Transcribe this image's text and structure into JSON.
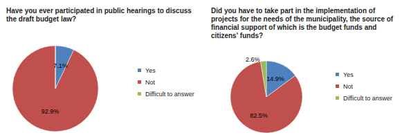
{
  "chart_data": [
    {
      "type": "pie",
      "title": "Have you ever participated in public hearings to discuss the draft budget law?",
      "categories": [
        "Yes",
        "Not",
        "Difficult to answer"
      ],
      "values": [
        7.1,
        92.9,
        0
      ],
      "value_labels": [
        "7.1%",
        "92.9%",
        null
      ],
      "colors": [
        "#4f81bd",
        "#c0504d",
        "#9bbb59"
      ],
      "data_labels": true,
      "legend": "right"
    },
    {
      "type": "pie",
      "title": "Did you have to take part in the implementation of projects for the needs of the municipality, the source of financial support of which is the budget funds and citizens' funds?",
      "categories": [
        "Yes",
        "Not",
        "Difficult to answer"
      ],
      "values": [
        14.9,
        82.5,
        2.6
      ],
      "value_labels": [
        "14.9%",
        "82.5%",
        "2.6%"
      ],
      "colors": [
        "#4f81bd",
        "#c0504d",
        "#9bbb59"
      ],
      "data_labels": true,
      "legend": "right"
    }
  ]
}
